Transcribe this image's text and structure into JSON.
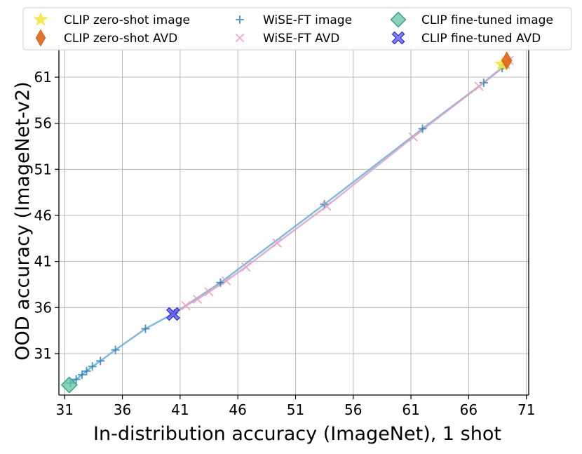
{
  "chart_data": {
    "type": "scatter",
    "xlabel": "In-distribution accuracy (ImageNet), 1 shot",
    "ylabel": "OOD accuracy (ImageNet-v2)",
    "xlim": [
      30.5,
      71.2
    ],
    "ylim": [
      26.5,
      64.5
    ],
    "xticks": [
      31,
      36,
      41,
      46,
      51,
      56,
      61,
      66,
      71
    ],
    "yticks": [
      31,
      36,
      41,
      46,
      51,
      56,
      61
    ],
    "grid": true,
    "legend_position": "top",
    "series": [
      {
        "name": "CLIP zero-shot image",
        "marker": "star",
        "color": "#f5e642",
        "x": [
          68.9
        ],
        "y": [
          62.4
        ]
      },
      {
        "name": "CLIP zero-shot AVD",
        "marker": "thin-diamond",
        "color": "#d95f0e",
        "x": [
          69.3
        ],
        "y": [
          62.8
        ]
      },
      {
        "name": "WiSE-FT image",
        "marker": "plus",
        "color": "#1f77b4",
        "line": true,
        "x": [
          31.5,
          32.0,
          32.5,
          32.9,
          33.4,
          34.1,
          35.4,
          38.0,
          40.5,
          44.5,
          53.5,
          62.0,
          67.3,
          68.9,
          69.0
        ],
        "y": [
          27.8,
          28.2,
          28.7,
          29.1,
          29.6,
          30.2,
          31.4,
          33.7,
          35.4,
          38.7,
          47.2,
          55.4,
          60.4,
          62.0,
          62.3
        ]
      },
      {
        "name": "WiSE-FT AVD",
        "marker": "x",
        "color": "#e7a3c6",
        "line": true,
        "x": [
          40.5,
          41.5,
          42.5,
          43.5,
          45.0,
          46.7,
          49.4,
          53.7,
          61.2,
          66.9,
          69.2,
          69.5
        ],
        "y": [
          35.4,
          36.2,
          36.9,
          37.7,
          38.9,
          40.4,
          43.0,
          47.0,
          54.5,
          60.0,
          62.4,
          62.8
        ]
      },
      {
        "name": "CLIP fine-tuned image",
        "marker": "diamond",
        "color": "#66c2a5",
        "x": [
          31.4
        ],
        "y": [
          27.6
        ]
      },
      {
        "name": "CLIP fine-tuned AVD",
        "marker": "filled-x",
        "color": "#4a4af5",
        "x": [
          40.4
        ],
        "y": [
          35.3
        ]
      }
    ]
  }
}
